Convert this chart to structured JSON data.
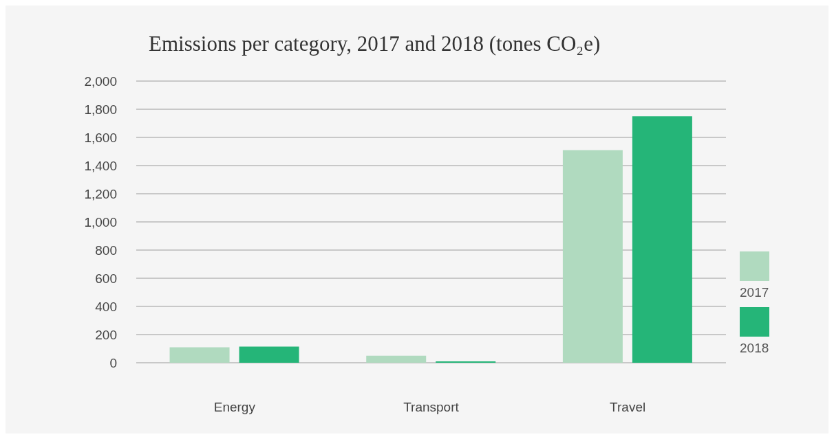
{
  "chart_data": {
    "type": "bar",
    "title": "Emissions per category, 2017 and 2018 (tones CO₂e)",
    "categories": [
      "Energy",
      "Transport",
      "Travel"
    ],
    "series": [
      {
        "name": "2017",
        "color": "#b0dabf",
        "values": [
          110,
          50,
          1510
        ]
      },
      {
        "name": "2018",
        "color": "#25b578",
        "values": [
          115,
          10,
          1750
        ]
      }
    ],
    "ylim": [
      0,
      2000
    ],
    "yticks": [
      {
        "value": 0,
        "label": "0"
      },
      {
        "value": 200,
        "label": "200"
      },
      {
        "value": 400,
        "label": "400"
      },
      {
        "value": 600,
        "label": "600"
      },
      {
        "value": 800,
        "label": "800"
      },
      {
        "value": 1000,
        "label": "1,000"
      },
      {
        "value": 1200,
        "label": "1,200"
      },
      {
        "value": 1400,
        "label": "1,400"
      },
      {
        "value": 1600,
        "label": "1,600"
      },
      {
        "value": 1800,
        "label": "1,800"
      },
      {
        "value": 2000,
        "label": "2,000"
      }
    ],
    "grid": "y",
    "legend": "right"
  }
}
